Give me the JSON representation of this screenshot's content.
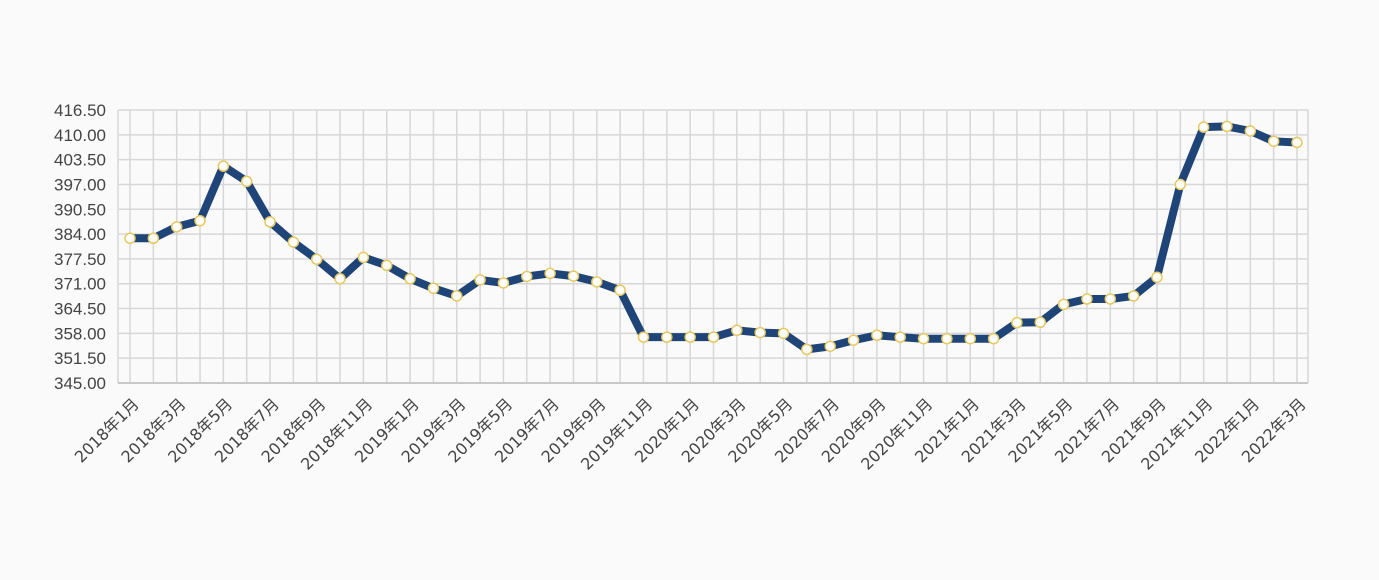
{
  "chart_data": {
    "type": "line",
    "title": "",
    "xlabel": "",
    "ylabel": "",
    "ylim": [
      345,
      416.5
    ],
    "yticks": [
      "416.50",
      "410.00",
      "403.50",
      "397.00",
      "390.50",
      "384.00",
      "377.50",
      "371.00",
      "364.50",
      "358.00",
      "351.50",
      "345.00"
    ],
    "xtick_labels": [
      "2018年1月",
      "2018年3月",
      "2018年5月",
      "2018年7月",
      "2018年9月",
      "2018年11月",
      "2019年1月",
      "2019年3月",
      "2019年5月",
      "2019年7月",
      "2019年9月",
      "2019年11月",
      "2020年1月",
      "2020年3月",
      "2020年5月",
      "2020年7月",
      "2020年9月",
      "2020年11月",
      "2021年1月",
      "2021年3月",
      "2021年5月",
      "2021年7月",
      "2021年9月",
      "2021年11月",
      "2022年1月",
      "2022年3月"
    ],
    "grid": true,
    "colors": {
      "line": "#1f4478",
      "marker_fill": "#ffffff",
      "marker_stroke": "#e8c860",
      "grid": "#d7d7d7",
      "axis": "#c8c8c8"
    },
    "series": [
      {
        "values": [
          382.9,
          382.9,
          385.9,
          387.5,
          401.8,
          397.8,
          387.2,
          381.9,
          377.4,
          372.3,
          377.9,
          375.8,
          372.3,
          369.8,
          367.8,
          372.0,
          371.2,
          372.9,
          373.7,
          373.0,
          371.5,
          369.3,
          357.0,
          357.0,
          357.0,
          357.0,
          358.8,
          358.2,
          358.0,
          353.8,
          354.6,
          356.2,
          357.5,
          357.0,
          356.6,
          356.6,
          356.6,
          356.6,
          360.8,
          360.9,
          365.6,
          367.0,
          367.0,
          367.8,
          372.7,
          397.0,
          412.0,
          412.2,
          411.0,
          408.3,
          408.0
        ]
      }
    ]
  }
}
